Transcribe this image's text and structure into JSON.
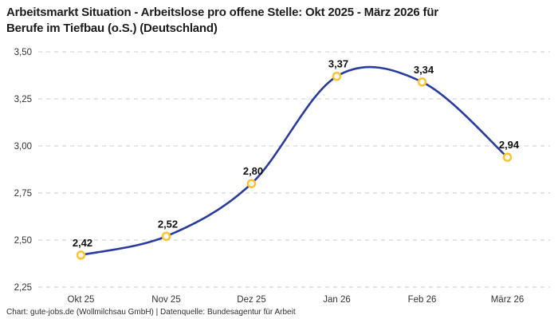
{
  "page": {
    "title_line1": "Arbeitsmarkt Situation - Arbeitslose pro offene Stelle: Okt 2025 - März 2026 für",
    "title_line2": "Berufe im Tiefbau (o.S.) (Deutschland)",
    "footer": "Chart: gute-jobs.de (Wollmilchsau GmbH) | Datenquelle: Bundesagentur für Arbeit"
  },
  "chart_data": {
    "type": "line",
    "title": "Arbeitsmarkt Situation - Arbeitslose pro offene Stelle: Okt 2025 - März 2026 für Berufe im Tiefbau (o.S.) (Deutschland)",
    "categories": [
      "Okt 25",
      "Nov 25",
      "Dez 25",
      "Jan 26",
      "Feb 26",
      "März 26"
    ],
    "series": [
      {
        "name": "Arbeitslose pro offene Stelle",
        "values": [
          2.42,
          2.52,
          2.8,
          3.37,
          3.34,
          2.94
        ],
        "point_labels": [
          "2,42",
          "2,52",
          "2,80",
          "3,37",
          "3,34",
          "2,94"
        ]
      }
    ],
    "xlabel": "",
    "ylabel": "",
    "ylim": [
      2.25,
      3.5
    ],
    "y_ticks": [
      2.25,
      2.5,
      2.75,
      3.0,
      3.25,
      3.5
    ],
    "y_tick_labels": [
      "2,25",
      "2,50",
      "2,75",
      "3,00",
      "3,25",
      "3,50"
    ],
    "grid": "horizontal-dashed",
    "legend": "none",
    "line_style": "smooth-spline",
    "colors": {
      "line": "#2a3ba0",
      "marker_ring": "#fcc32f",
      "marker_fill": "#ffffff",
      "grid": "#c9c9c9",
      "point_label": "#111111",
      "tick_label": "#333333",
      "title": "#1c1c1c",
      "footer": "#2e2e2e",
      "background": "#ffffff"
    }
  }
}
